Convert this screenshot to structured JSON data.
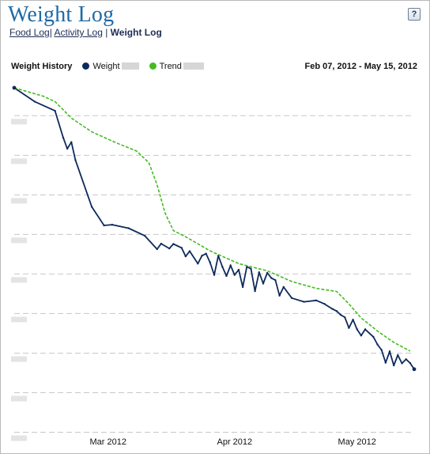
{
  "page": {
    "title": "Weight Log",
    "help_label": "?"
  },
  "nav": {
    "food_log": "Food Log",
    "activity_log": "Activity Log",
    "weight_log": "Weight Log"
  },
  "legend": {
    "history_label": "Weight History",
    "weight_label": "Weight",
    "trend_label": "Trend",
    "date_range": "Feb 07, 2012 - May 15, 2012"
  },
  "colors": {
    "weight": "#0d2a5c",
    "trend": "#44bb22",
    "grid": "#c8c8c8"
  },
  "chart_data": {
    "type": "line",
    "x_axis_ticks": [
      "Mar 2012",
      "Apr 2012",
      "May 2012"
    ],
    "x_axis_tick_dates": [
      "2012-03-01",
      "2012-04-01",
      "2012-05-01"
    ],
    "x_range": [
      "2012-02-07",
      "2012-05-15"
    ],
    "y_range": [
      0,
      100
    ],
    "y_tick_values": [
      0,
      11.5,
      23,
      34.5,
      46,
      57.5,
      69,
      80.5,
      92
    ],
    "grid": true,
    "series": [
      {
        "name": "Weight",
        "x": [
          "2012-02-07",
          "2012-02-12",
          "2012-02-17",
          "2012-02-19",
          "2012-02-20",
          "2012-02-21",
          "2012-02-22",
          "2012-02-26",
          "2012-02-29",
          "2012-03-02",
          "2012-03-06",
          "2012-03-10",
          "2012-03-13",
          "2012-03-14",
          "2012-03-16",
          "2012-03-17",
          "2012-03-19",
          "2012-03-20",
          "2012-03-21",
          "2012-03-23",
          "2012-03-24",
          "2012-03-25",
          "2012-03-26",
          "2012-03-27",
          "2012-03-28",
          "2012-03-29",
          "2012-03-30",
          "2012-03-31",
          "2012-04-01",
          "2012-04-02",
          "2012-04-03",
          "2012-04-04",
          "2012-04-05",
          "2012-04-06",
          "2012-04-07",
          "2012-04-08",
          "2012-04-09",
          "2012-04-10",
          "2012-04-11",
          "2012-04-12",
          "2012-04-13",
          "2012-04-15",
          "2012-04-18",
          "2012-04-21",
          "2012-04-23",
          "2012-04-25",
          "2012-04-26",
          "2012-04-27",
          "2012-04-28",
          "2012-04-29",
          "2012-04-30",
          "2012-05-01",
          "2012-05-02",
          "2012-05-03",
          "2012-05-05",
          "2012-05-06",
          "2012-05-07",
          "2012-05-08",
          "2012-05-09",
          "2012-05-10",
          "2012-05-11",
          "2012-05-12",
          "2012-05-13",
          "2012-05-14",
          "2012-05-15"
        ],
        "values": [
          100,
          96,
          93.3,
          85.5,
          82.3,
          84.2,
          79,
          65.4,
          60,
          60.2,
          59.2,
          57,
          53.1,
          54.7,
          53.3,
          54.6,
          53.5,
          51,
          52.5,
          48.9,
          51.2,
          51.8,
          49.2,
          45.6,
          51.2,
          48,
          45.3,
          48.4,
          45.6,
          47.1,
          42.1,
          48,
          47.4,
          40.9,
          46.4,
          43.1,
          46.2,
          44.7,
          44.1,
          39.6,
          42.1,
          38.9,
          37.8,
          38.2,
          37.2,
          35.7,
          35.1,
          34,
          33.3,
          30.2,
          32.6,
          29.8,
          28,
          29.8,
          27.6,
          25.4,
          23.8,
          20.1,
          23.4,
          19.3,
          22.3,
          19.9,
          21.1,
          20,
          18.2
        ]
      },
      {
        "name": "Trend",
        "x": [
          "2012-02-07",
          "2012-02-14",
          "2012-02-17",
          "2012-02-21",
          "2012-02-26",
          "2012-03-03",
          "2012-03-08",
          "2012-03-11",
          "2012-03-13",
          "2012-03-15",
          "2012-03-17",
          "2012-03-20",
          "2012-03-26",
          "2012-04-02",
          "2012-04-09",
          "2012-04-15",
          "2012-04-21",
          "2012-04-26",
          "2012-04-29",
          "2012-05-02",
          "2012-05-06",
          "2012-05-10",
          "2012-05-14"
        ],
        "values": [
          100,
          97.6,
          96,
          91.2,
          87.2,
          84,
          81.6,
          78.2,
          71.8,
          63.5,
          58.5,
          56.7,
          52.6,
          48.9,
          46.8,
          43.7,
          41.7,
          40.8,
          37.2,
          33.1,
          29.3,
          26,
          23.5
        ]
      }
    ]
  }
}
